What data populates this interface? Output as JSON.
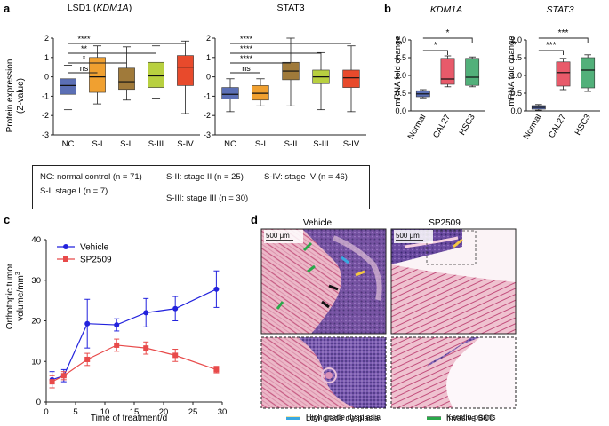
{
  "panels": {
    "a": "a",
    "b": "b",
    "c": "c",
    "d": "d"
  },
  "colors": {
    "NC": "#5b6fb5",
    "S-I": "#f0a030",
    "S-II": "#a07a3a",
    "S-III": "#b8d040",
    "S-IV": "#e84a2c",
    "Normal": "#5b6fb5",
    "CAL27": "#e85a6a",
    "HSC3": "#52b07a",
    "vehicle": "#2222dd",
    "sp2509": "#e84a4a"
  },
  "chart_data": [
    {
      "type": "box",
      "title": "LSD1 (KDM1A)",
      "title_plain": "LSD1 (",
      "title_gene": "KDM1A",
      "title_close": ")",
      "ylabel_line1": "Protein expression",
      "ylabel_line2": "(Z-value)",
      "ylim": [
        -3,
        2
      ],
      "yticks": [
        "-3",
        "-2",
        "-1",
        "0",
        "1",
        "2"
      ],
      "categories": [
        "NC",
        "S-I",
        "S-II",
        "S-III",
        "S-IV"
      ],
      "boxes": [
        {
          "name": "NC",
          "min": -1.7,
          "q1": -0.9,
          "median": -0.45,
          "q3": -0.1,
          "max": 0.6
        },
        {
          "name": "S-I",
          "min": -1.4,
          "q1": -0.8,
          "median": 0.0,
          "q3": 1.0,
          "max": 1.6
        },
        {
          "name": "S-II",
          "min": -1.2,
          "q1": -0.65,
          "median": -0.25,
          "q3": 0.45,
          "max": 1.55
        },
        {
          "name": "S-III",
          "min": -1.1,
          "q1": -0.55,
          "median": 0.05,
          "q3": 0.75,
          "max": 1.6
        },
        {
          "name": "S-IV",
          "min": -1.9,
          "q1": -0.45,
          "median": 0.5,
          "q3": 1.1,
          "max": 1.85
        }
      ],
      "significance": [
        {
          "from": "NC",
          "to": "S-I",
          "label": "ns"
        },
        {
          "from": "NC",
          "to": "S-II",
          "label": "*"
        },
        {
          "from": "NC",
          "to": "S-III",
          "label": "**"
        },
        {
          "from": "NC",
          "to": "S-IV",
          "label": "****"
        }
      ]
    },
    {
      "type": "box",
      "title": "STAT3",
      "ylim": [
        -3,
        2
      ],
      "yticks": [
        "-3",
        "-2",
        "-1",
        "0",
        "1",
        "2"
      ],
      "categories": [
        "NC",
        "S-I",
        "S-II",
        "S-III",
        "S-IV"
      ],
      "boxes": [
        {
          "name": "NC",
          "min": -1.8,
          "q1": -1.15,
          "median": -0.9,
          "q3": -0.55,
          "max": -0.1
        },
        {
          "name": "S-I",
          "min": -1.5,
          "q1": -1.2,
          "median": -0.85,
          "q3": -0.45,
          "max": -0.1
        },
        {
          "name": "S-II",
          "min": -1.5,
          "q1": -0.15,
          "median": 0.3,
          "q3": 0.75,
          "max": 2.0
        },
        {
          "name": "S-III",
          "min": -1.7,
          "q1": -0.35,
          "median": 0.0,
          "q3": 0.35,
          "max": 1.25
        },
        {
          "name": "S-IV",
          "min": -1.8,
          "q1": -0.55,
          "median": -0.05,
          "q3": 0.35,
          "max": 1.6
        }
      ],
      "significance": [
        {
          "from": "NC",
          "to": "S-I",
          "label": "ns"
        },
        {
          "from": "NC",
          "to": "S-II",
          "label": "****"
        },
        {
          "from": "NC",
          "to": "S-III",
          "label": "****"
        },
        {
          "from": "NC",
          "to": "S-IV",
          "label": "****"
        }
      ]
    },
    {
      "type": "box",
      "title": "KDM1A",
      "ylabel": "mRNA fold change",
      "ylim": [
        0.0,
        2.0
      ],
      "yticks": [
        "0.0",
        "0.5",
        "1.0",
        "1.5",
        "2.0"
      ],
      "categories": [
        "Normal",
        "CAL27",
        "HSC3"
      ],
      "boxes": [
        {
          "name": "Normal",
          "min": 0.37,
          "q1": 0.4,
          "median": 0.48,
          "q3": 0.57,
          "max": 0.6
        },
        {
          "name": "CAL27",
          "min": 0.68,
          "q1": 0.75,
          "median": 0.9,
          "q3": 1.48,
          "max": 1.55
        },
        {
          "name": "HSC3",
          "min": 0.68,
          "q1": 0.72,
          "median": 0.95,
          "q3": 1.48,
          "max": 1.52
        }
      ],
      "significance": [
        {
          "from": "Normal",
          "to": "CAL27",
          "label": "*"
        },
        {
          "from": "Normal",
          "to": "HSC3",
          "label": "*"
        }
      ]
    },
    {
      "type": "box",
      "title": "STAT3",
      "ylabel": "mRNA fold change",
      "ylim": [
        0.0,
        2.0
      ],
      "yticks": [
        "0.0",
        "0.5",
        "1.0",
        "1.5",
        "2.0"
      ],
      "categories": [
        "Normal",
        "CAL27",
        "HSC3"
      ],
      "boxes": [
        {
          "name": "Normal",
          "min": 0.02,
          "q1": 0.05,
          "median": 0.1,
          "q3": 0.15,
          "max": 0.18
        },
        {
          "name": "CAL27",
          "min": 0.6,
          "q1": 0.7,
          "median": 1.08,
          "q3": 1.38,
          "max": 1.48
        },
        {
          "name": "HSC3",
          "min": 0.55,
          "q1": 0.65,
          "median": 1.15,
          "q3": 1.5,
          "max": 1.58
        }
      ],
      "significance": [
        {
          "from": "Normal",
          "to": "CAL27",
          "label": "***"
        },
        {
          "from": "Normal",
          "to": "HSC3",
          "label": "***"
        }
      ]
    },
    {
      "type": "line",
      "xlabel": "Time of treatment/d",
      "ylabel_line1": "Orthotopic tumor",
      "ylabel_line2": "volume/mm",
      "ylabel_sup": "3",
      "xlim": [
        0,
        30
      ],
      "ylim": [
        0,
        40
      ],
      "xticks": [
        "0",
        "5",
        "10",
        "15",
        "20",
        "25",
        "30"
      ],
      "yticks": [
        "0",
        "10",
        "20",
        "30",
        "40"
      ],
      "series": [
        {
          "name": "Vehicle",
          "x": [
            1,
            3,
            7,
            12,
            17,
            22,
            29
          ],
          "y": [
            5.5,
            6.5,
            19.3,
            19.0,
            22.0,
            23.0,
            27.8
          ],
          "err": [
            2.0,
            1.5,
            6.0,
            1.5,
            3.5,
            3.0,
            4.5
          ]
        },
        {
          "name": "SP2509",
          "x": [
            1,
            3,
            7,
            12,
            17,
            22,
            29
          ],
          "y": [
            5.0,
            6.5,
            10.5,
            14.0,
            13.3,
            11.5,
            8.0
          ],
          "err": [
            1.5,
            1.0,
            1.5,
            1.5,
            1.5,
            1.5,
            0.8
          ]
        }
      ]
    }
  ],
  "stage_legend": {
    "nc": "NC: normal control (n = 71)",
    "s1": "S-I: stage I (n = 7)",
    "s2": "S-II: stage II (n = 25)",
    "s3": "S-III: stage III (n = 30)",
    "s4": "S-IV: stage IV (n = 46)"
  },
  "histology": {
    "vehicle_title": "Vehicle",
    "sp2509_title": "SP2509",
    "scale_bar": "500 μm",
    "legend": [
      {
        "label": "Low grade dysplasia",
        "color": "#f5c842"
      },
      {
        "label": "High grade dysplasia",
        "color": "#3aa8e0"
      },
      {
        "label": "Invasive SCC",
        "color": "#111111"
      },
      {
        "label": "Keratin pearls",
        "color": "#2aa84a"
      }
    ]
  }
}
